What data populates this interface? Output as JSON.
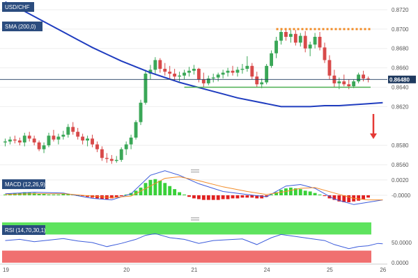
{
  "chart_data": [
    {
      "type": "candlestick",
      "panel": "price",
      "symbol": "USD/CHF",
      "indicator_label": "SMA (200,0)",
      "ylim": [
        0.8555,
        0.873
      ],
      "y_ticks": [
        0.856,
        0.858,
        0.862,
        0.864,
        0.866,
        0.868,
        0.87,
        0.872
      ],
      "y_tick_labels": [
        "0.8560",
        "0.8580",
        "0.8620",
        "0.8640",
        "0.8660",
        "0.8680",
        "0.8700",
        "0.8720"
      ],
      "current_price": 0.8648,
      "current_price_label": "0.86480",
      "x_labels": [
        "19",
        "20",
        "21",
        "24",
        "25",
        "26"
      ],
      "candles": [
        {
          "o": 0.8583,
          "h": 0.8587,
          "l": 0.8579,
          "c": 0.8584
        },
        {
          "o": 0.8584,
          "h": 0.8589,
          "l": 0.8581,
          "c": 0.8586
        },
        {
          "o": 0.8586,
          "h": 0.859,
          "l": 0.8582,
          "c": 0.8585
        },
        {
          "o": 0.8585,
          "h": 0.8588,
          "l": 0.858,
          "c": 0.8583
        },
        {
          "o": 0.8583,
          "h": 0.8593,
          "l": 0.8579,
          "c": 0.859
        },
        {
          "o": 0.859,
          "h": 0.8594,
          "l": 0.8584,
          "c": 0.8587
        },
        {
          "o": 0.8587,
          "h": 0.859,
          "l": 0.858,
          "c": 0.8583
        },
        {
          "o": 0.8583,
          "h": 0.8585,
          "l": 0.8574,
          "c": 0.8576
        },
        {
          "o": 0.8576,
          "h": 0.8583,
          "l": 0.8572,
          "c": 0.858
        },
        {
          "o": 0.858,
          "h": 0.8593,
          "l": 0.8578,
          "c": 0.859
        },
        {
          "o": 0.859,
          "h": 0.8596,
          "l": 0.8584,
          "c": 0.8586
        },
        {
          "o": 0.8586,
          "h": 0.8592,
          "l": 0.8581,
          "c": 0.8589
        },
        {
          "o": 0.8589,
          "h": 0.8595,
          "l": 0.8586,
          "c": 0.8591
        },
        {
          "o": 0.8591,
          "h": 0.8602,
          "l": 0.8588,
          "c": 0.8599
        },
        {
          "o": 0.8599,
          "h": 0.8604,
          "l": 0.8591,
          "c": 0.8594
        },
        {
          "o": 0.8594,
          "h": 0.8598,
          "l": 0.8586,
          "c": 0.8589
        },
        {
          "o": 0.8589,
          "h": 0.8592,
          "l": 0.8581,
          "c": 0.8585
        },
        {
          "o": 0.8585,
          "h": 0.859,
          "l": 0.8579,
          "c": 0.8587
        },
        {
          "o": 0.8587,
          "h": 0.8591,
          "l": 0.8578,
          "c": 0.8581
        },
        {
          "o": 0.8581,
          "h": 0.8584,
          "l": 0.8573,
          "c": 0.8576
        },
        {
          "o": 0.8576,
          "h": 0.8579,
          "l": 0.8564,
          "c": 0.8567
        },
        {
          "o": 0.8567,
          "h": 0.8572,
          "l": 0.8562,
          "c": 0.8566
        },
        {
          "o": 0.8566,
          "h": 0.857,
          "l": 0.8561,
          "c": 0.8564
        },
        {
          "o": 0.8564,
          "h": 0.8569,
          "l": 0.8562,
          "c": 0.8565
        },
        {
          "o": 0.8565,
          "h": 0.8578,
          "l": 0.8563,
          "c": 0.8576
        },
        {
          "o": 0.8576,
          "h": 0.8584,
          "l": 0.857,
          "c": 0.8581
        },
        {
          "o": 0.8581,
          "h": 0.8591,
          "l": 0.8576,
          "c": 0.8588
        },
        {
          "o": 0.8588,
          "h": 0.8606,
          "l": 0.8586,
          "c": 0.8604
        },
        {
          "o": 0.8604,
          "h": 0.8627,
          "l": 0.8601,
          "c": 0.8624
        },
        {
          "o": 0.8624,
          "h": 0.8658,
          "l": 0.8622,
          "c": 0.8654
        },
        {
          "o": 0.8654,
          "h": 0.8663,
          "l": 0.8648,
          "c": 0.8658
        },
        {
          "o": 0.8658,
          "h": 0.8671,
          "l": 0.8654,
          "c": 0.8668
        },
        {
          "o": 0.8668,
          "h": 0.867,
          "l": 0.8655,
          "c": 0.8659
        },
        {
          "o": 0.8659,
          "h": 0.8665,
          "l": 0.8652,
          "c": 0.8656
        },
        {
          "o": 0.8656,
          "h": 0.8662,
          "l": 0.8649,
          "c": 0.8654
        },
        {
          "o": 0.8654,
          "h": 0.8659,
          "l": 0.8647,
          "c": 0.8651
        },
        {
          "o": 0.8651,
          "h": 0.8656,
          "l": 0.8646,
          "c": 0.8652
        },
        {
          "o": 0.8652,
          "h": 0.8658,
          "l": 0.8648,
          "c": 0.8655
        },
        {
          "o": 0.8655,
          "h": 0.8661,
          "l": 0.8651,
          "c": 0.8657
        },
        {
          "o": 0.8657,
          "h": 0.8663,
          "l": 0.8653,
          "c": 0.8659
        },
        {
          "o": 0.8659,
          "h": 0.866,
          "l": 0.8645,
          "c": 0.8648
        },
        {
          "o": 0.8648,
          "h": 0.8655,
          "l": 0.864,
          "c": 0.8644
        },
        {
          "o": 0.8644,
          "h": 0.8652,
          "l": 0.8642,
          "c": 0.8649
        },
        {
          "o": 0.8649,
          "h": 0.8654,
          "l": 0.8645,
          "c": 0.865
        },
        {
          "o": 0.865,
          "h": 0.8655,
          "l": 0.8646,
          "c": 0.8653
        },
        {
          "o": 0.8653,
          "h": 0.8658,
          "l": 0.8649,
          "c": 0.8655
        },
        {
          "o": 0.8655,
          "h": 0.866,
          "l": 0.8651,
          "c": 0.8657
        },
        {
          "o": 0.8657,
          "h": 0.8662,
          "l": 0.8652,
          "c": 0.8655
        },
        {
          "o": 0.8655,
          "h": 0.8661,
          "l": 0.8651,
          "c": 0.8658
        },
        {
          "o": 0.8658,
          "h": 0.8664,
          "l": 0.8654,
          "c": 0.8659
        },
        {
          "o": 0.8659,
          "h": 0.8672,
          "l": 0.8656,
          "c": 0.8662
        },
        {
          "o": 0.8662,
          "h": 0.8665,
          "l": 0.8648,
          "c": 0.8651
        },
        {
          "o": 0.8651,
          "h": 0.8656,
          "l": 0.864,
          "c": 0.8643
        },
        {
          "o": 0.8643,
          "h": 0.8649,
          "l": 0.8639,
          "c": 0.8645
        },
        {
          "o": 0.8645,
          "h": 0.8664,
          "l": 0.8643,
          "c": 0.8662
        },
        {
          "o": 0.8662,
          "h": 0.8678,
          "l": 0.866,
          "c": 0.8675
        },
        {
          "o": 0.8675,
          "h": 0.8692,
          "l": 0.867,
          "c": 0.8688
        },
        {
          "o": 0.8688,
          "h": 0.8701,
          "l": 0.8684,
          "c": 0.8697
        },
        {
          "o": 0.8697,
          "h": 0.8701,
          "l": 0.8688,
          "c": 0.8692
        },
        {
          "o": 0.8692,
          "h": 0.8699,
          "l": 0.8686,
          "c": 0.8695
        },
        {
          "o": 0.8695,
          "h": 0.8699,
          "l": 0.8683,
          "c": 0.8686
        },
        {
          "o": 0.8686,
          "h": 0.8696,
          "l": 0.8682,
          "c": 0.8693
        },
        {
          "o": 0.8693,
          "h": 0.8698,
          "l": 0.8676,
          "c": 0.868
        },
        {
          "o": 0.868,
          "h": 0.8687,
          "l": 0.8672,
          "c": 0.8684
        },
        {
          "o": 0.8684,
          "h": 0.8696,
          "l": 0.868,
          "c": 0.8692
        },
        {
          "o": 0.8692,
          "h": 0.8697,
          "l": 0.8678,
          "c": 0.8681
        },
        {
          "o": 0.8681,
          "h": 0.8686,
          "l": 0.8665,
          "c": 0.8668
        },
        {
          "o": 0.8668,
          "h": 0.8673,
          "l": 0.8648,
          "c": 0.8652
        },
        {
          "o": 0.8652,
          "h": 0.8658,
          "l": 0.864,
          "c": 0.8644
        },
        {
          "o": 0.8644,
          "h": 0.865,
          "l": 0.8638,
          "c": 0.8646
        },
        {
          "o": 0.8646,
          "h": 0.8653,
          "l": 0.8641,
          "c": 0.8643
        },
        {
          "o": 0.8643,
          "h": 0.8648,
          "l": 0.8638,
          "c": 0.8641
        },
        {
          "o": 0.8641,
          "h": 0.8648,
          "l": 0.8639,
          "c": 0.8646
        },
        {
          "o": 0.8646,
          "h": 0.8655,
          "l": 0.8644,
          "c": 0.8653
        },
        {
          "o": 0.8653,
          "h": 0.8657,
          "l": 0.8646,
          "c": 0.8649
        },
        {
          "o": 0.8649,
          "h": 0.8651,
          "l": 0.8645,
          "c": 0.8648
        }
      ],
      "sma_200": [
        [
          0,
          0.8728
        ],
        [
          3,
          0.8721
        ],
        [
          6,
          0.8713
        ],
        [
          9,
          0.8705
        ],
        [
          12,
          0.8697
        ],
        [
          15,
          0.8689
        ],
        [
          18,
          0.8681
        ],
        [
          21,
          0.8674
        ],
        [
          24,
          0.8667
        ],
        [
          27,
          0.8661
        ],
        [
          30,
          0.8655
        ],
        [
          33,
          0.865
        ],
        [
          36,
          0.8645
        ],
        [
          39,
          0.8641
        ],
        [
          42,
          0.8637
        ],
        [
          45,
          0.8633
        ],
        [
          48,
          0.8629
        ],
        [
          51,
          0.8626
        ],
        [
          54,
          0.8623
        ],
        [
          57,
          0.862
        ],
        [
          60,
          0.862
        ],
        [
          63,
          0.862
        ],
        [
          66,
          0.8621
        ],
        [
          69,
          0.8621
        ],
        [
          72,
          0.8622
        ],
        [
          75,
          0.8623
        ],
        [
          78,
          0.8624
        ]
      ],
      "resistance_level": 0.87,
      "support_level": 0.864,
      "colors": {
        "up": "#3aa757",
        "down": "#d84a4a",
        "sma": "#1f3cbf",
        "resistance": "#f28c28",
        "support": "#4caf50",
        "arrow": "#e53935"
      }
    },
    {
      "type": "histogram",
      "panel": "macd",
      "label": "MACD (12,26,9)",
      "ylim": [
        -0.0028,
        0.0028
      ],
      "y_ticks": [
        0.002,
        -0.0
      ],
      "y_tick_labels": [
        "0.0020",
        "-0.0000"
      ],
      "histogram": [
        0.0001,
        0.0002,
        0.0003,
        0.0003,
        0.0004,
        0.0004,
        0.0003,
        0.0002,
        0.0002,
        0.0001,
        0.0001,
        0.0001,
        0.0002,
        0.0002,
        0.0001,
        0,
        -0.0001,
        -0.0002,
        -0.0003,
        -0.0004,
        -0.0005,
        -0.0005,
        -0.0004,
        -0.0003,
        -0.0001,
        0.0001,
        0.0003,
        0.0006,
        0.001,
        0.0016,
        0.002,
        0.0021,
        0.0019,
        0.0016,
        0.0012,
        0.0008,
        0.0004,
        0.0001,
        -0.0002,
        -0.0004,
        -0.0005,
        -0.0006,
        -0.0006,
        -0.0006,
        -0.0006,
        -0.0005,
        -0.0005,
        -0.0004,
        -0.0004,
        -0.0003,
        -0.0003,
        -0.0003,
        -0.0004,
        -0.0004,
        -0.0002,
        0.0001,
        0.0004,
        0.0007,
        0.0009,
        0.001,
        0.0009,
        0.0008,
        0.0006,
        0.0005,
        0.0003,
        0.0001,
        -0.0001,
        -0.0004,
        -0.0006,
        -0.0008,
        -0.0009,
        -0.0009,
        -0.0008,
        -0.0007,
        -0.0005,
        -0.0003
      ],
      "macd_line": [
        [
          0,
          0.0002
        ],
        [
          6,
          0.0004
        ],
        [
          12,
          0.0003
        ],
        [
          18,
          -0.0004
        ],
        [
          22,
          -0.0006
        ],
        [
          26,
          0.0002
        ],
        [
          30,
          0.0026
        ],
        [
          33,
          0.0032
        ],
        [
          36,
          0.0026
        ],
        [
          40,
          0.0015
        ],
        [
          45,
          0.0005
        ],
        [
          50,
          0.0001
        ],
        [
          54,
          -0.0002
        ],
        [
          58,
          0.0012
        ],
        [
          61,
          0.0014
        ],
        [
          64,
          0.0009
        ],
        [
          68,
          -0.0005
        ],
        [
          72,
          -0.0012
        ],
        [
          75,
          -0.0009
        ],
        [
          78,
          -0.0006
        ]
      ],
      "signal_line": [
        [
          0,
          0.0001
        ],
        [
          6,
          0.0002
        ],
        [
          12,
          0.0002
        ],
        [
          18,
          -0.0001
        ],
        [
          22,
          -0.0003
        ],
        [
          26,
          -0.0001
        ],
        [
          30,
          0.0012
        ],
        [
          33,
          0.0022
        ],
        [
          36,
          0.0024
        ],
        [
          40,
          0.0019
        ],
        [
          45,
          0.0011
        ],
        [
          50,
          0.0005
        ],
        [
          54,
          0.0001
        ],
        [
          58,
          0.0005
        ],
        [
          61,
          0.0009
        ],
        [
          64,
          0.001
        ],
        [
          68,
          0.0003
        ],
        [
          72,
          -0.0004
        ],
        [
          75,
          -0.0006
        ],
        [
          78,
          -0.0006
        ]
      ],
      "colors": {
        "pos": "#39d039",
        "neg": "#e02020",
        "macd": "#3b5bdb",
        "signal": "#f28c28"
      }
    },
    {
      "type": "line",
      "panel": "rsi",
      "label": "RSI (14,70,30,1)",
      "ylim": [
        0,
        100
      ],
      "y_ticks": [
        50,
        0
      ],
      "y_tick_labels": [
        "50.0000",
        "0.0000"
      ],
      "overbought": 70,
      "oversold": 30,
      "values": [
        [
          0,
          55
        ],
        [
          3,
          58
        ],
        [
          6,
          52
        ],
        [
          9,
          56
        ],
        [
          12,
          60
        ],
        [
          15,
          54
        ],
        [
          18,
          50
        ],
        [
          21,
          40
        ],
        [
          24,
          48
        ],
        [
          27,
          58
        ],
        [
          29,
          68
        ],
        [
          31,
          72
        ],
        [
          34,
          62
        ],
        [
          37,
          58
        ],
        [
          40,
          48
        ],
        [
          43,
          55
        ],
        [
          46,
          57
        ],
        [
          49,
          59
        ],
        [
          52,
          45
        ],
        [
          55,
          62
        ],
        [
          57,
          70
        ],
        [
          60,
          65
        ],
        [
          63,
          60
        ],
        [
          66,
          55
        ],
        [
          68,
          45
        ],
        [
          71,
          35
        ],
        [
          73,
          40
        ],
        [
          75,
          42
        ],
        [
          77,
          48
        ],
        [
          78,
          47
        ]
      ],
      "colors": {
        "line": "#3b5bdb",
        "ob_zone": "#5ee35e",
        "os_zone": "#f07070"
      }
    }
  ]
}
